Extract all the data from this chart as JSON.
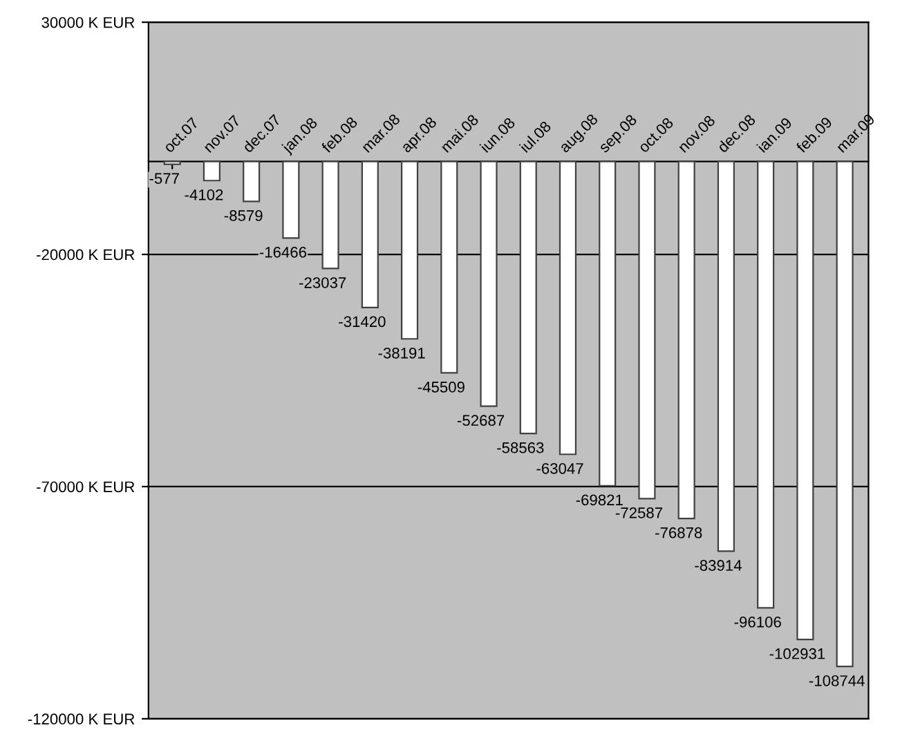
{
  "chart_data": {
    "type": "bar",
    "categories": [
      "oct.07",
      "nov.07",
      "dec.07",
      "jan.08",
      "feb.08",
      "mar.08",
      "apr.08",
      "mai.08",
      "iun.08",
      "iul.08",
      "aug.08",
      "sep.08",
      "oct.08",
      "nov.08",
      "dec.08",
      "ian.09",
      "feb.09",
      "mar.09"
    ],
    "values": [
      -577,
      -4102,
      -8579,
      -16466,
      -23037,
      -31420,
      -38191,
      -45509,
      -52687,
      -58563,
      -63047,
      -69821,
      -72587,
      -76878,
      -83914,
      -96106,
      -102931,
      -108744
    ],
    "color": "#ffffff",
    "data_labels": true,
    "ylim": [
      -120000,
      30000
    ],
    "yticks": [
      {
        "value": 30000,
        "label": "30000 K EUR"
      },
      {
        "value": -20000,
        "label": "-20000 K EUR"
      },
      {
        "value": -70000,
        "label": "-70000 K EUR"
      },
      {
        "value": -120000,
        "label": "-120000 K EUR"
      }
    ],
    "grid": "y"
  }
}
